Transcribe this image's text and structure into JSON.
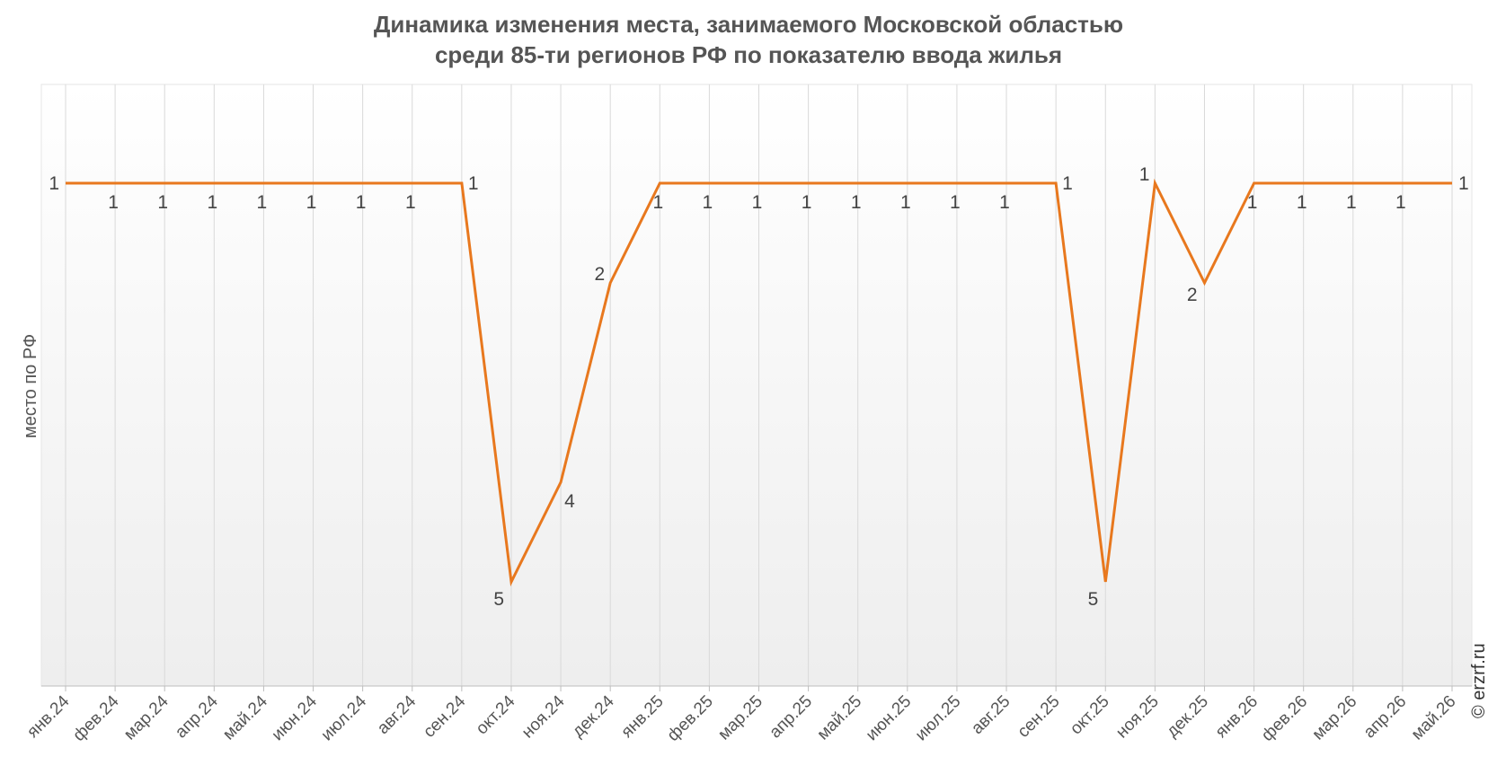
{
  "chart_data": {
    "type": "line",
    "title_lines": [
      "Динамика изменения места, занимаемого Московской областью",
      "среди 85-ти регионов РФ по показателю ввода жилья"
    ],
    "xlabel": "",
    "ylabel": "место по РФ",
    "y_inverted": true,
    "ylim": [
      0,
      6
    ],
    "grid": {
      "vertical": true,
      "horizontal": false
    },
    "categories": [
      "янв.24",
      "фев.24",
      "мар.24",
      "апр.24",
      "май.24",
      "июн.24",
      "июл.24",
      "авг.24",
      "сен.24",
      "окт.24",
      "ноя.24",
      "дек.24",
      "янв.25",
      "фев.25",
      "мар.25",
      "апр.25",
      "май.25",
      "июн.25",
      "июл.25",
      "авг.25",
      "сен.25",
      "окт.25",
      "ноя.25",
      "дек.25",
      "янв.26",
      "фев.26",
      "мар.26",
      "апр.26",
      "май.26"
    ],
    "series": [
      {
        "values": [
          1,
          1,
          1,
          1,
          1,
          1,
          1,
          1,
          1,
          5,
          4,
          2,
          1,
          1,
          1,
          1,
          1,
          1,
          1,
          1,
          1,
          5,
          1,
          2,
          1,
          1,
          1,
          1,
          1
        ],
        "color": "#e8781e"
      }
    ],
    "data_labels": [
      "1",
      "1",
      "1",
      "1",
      "1",
      "1",
      "1",
      "1",
      "1",
      "5",
      "4",
      "2",
      "1",
      "1",
      "1",
      "1",
      "1",
      "1",
      "1",
      "1",
      "1",
      "5",
      "1",
      "2",
      "1",
      "1",
      "1",
      "1",
      "1"
    ]
  },
  "credit": "© erzrf.ru",
  "colors": {
    "line": "#e8781e",
    "grid": "#d9d9d9",
    "text": "#555555",
    "plot_bg_top": "#ffffff",
    "plot_bg_bottom": "#efefef"
  }
}
